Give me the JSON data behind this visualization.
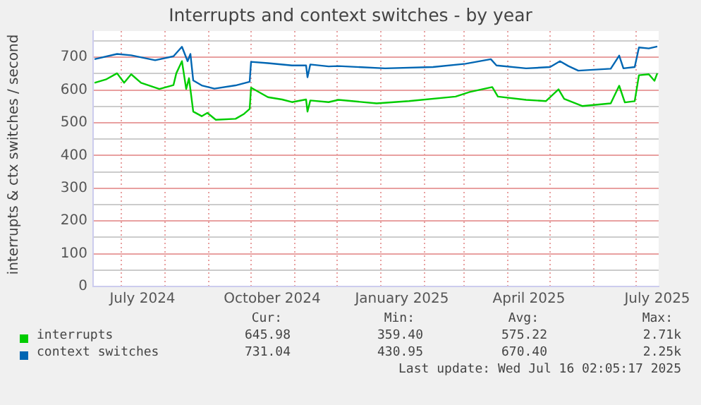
{
  "chart_data": {
    "type": "line",
    "title": "Interrupts and context switches - by year",
    "ylabel": "interrupts & ctx switches / second",
    "xlim": [
      "2024-06-11",
      "2025-07-17"
    ],
    "xticks": [
      {
        "value": "2024-07-01",
        "label": null
      },
      {
        "value": "2024-07-16",
        "label": "July 2024"
      },
      {
        "value": "2024-08-01",
        "label": null
      },
      {
        "value": "2024-09-01",
        "label": null
      },
      {
        "value": "2024-10-01",
        "label": null
      },
      {
        "value": "2024-10-16",
        "label": "October 2024"
      },
      {
        "value": "2024-11-01",
        "label": null
      },
      {
        "value": "2024-12-01",
        "label": null
      },
      {
        "value": "2025-01-01",
        "label": null
      },
      {
        "value": "2025-01-16",
        "label": "January 2025"
      },
      {
        "value": "2025-02-01",
        "label": null
      },
      {
        "value": "2025-03-01",
        "label": null
      },
      {
        "value": "2025-04-01",
        "label": null
      },
      {
        "value": "2025-04-16",
        "label": "April 2025"
      },
      {
        "value": "2025-05-01",
        "label": null
      },
      {
        "value": "2025-06-01",
        "label": null
      },
      {
        "value": "2025-07-01",
        "label": null
      },
      {
        "value": "2025-07-16",
        "label": "July 2025"
      }
    ],
    "ylim": [
      0,
      780
    ],
    "yticks": [
      0,
      {
        "value": 50,
        "label": null
      },
      100,
      {
        "value": 150,
        "label": null
      },
      200,
      {
        "value": 250,
        "label": null
      },
      300,
      {
        "value": 350,
        "label": null
      },
      400,
      {
        "value": 450,
        "label": null
      },
      500,
      {
        "value": 550,
        "label": null
      },
      600,
      {
        "value": 650,
        "label": null
      },
      700,
      {
        "value": 750,
        "label": null
      }
    ],
    "grid": true,
    "legend": "bottom",
    "marker": "none",
    "line_style": "solid",
    "series": [
      {
        "name": "interrupts",
        "color": "#00cc00",
        "x": [
          "2024-06-12",
          "2024-06-20",
          "2024-06-28",
          "2024-07-03",
          "2024-07-08",
          "2024-07-15",
          "2024-07-28",
          "2024-08-07",
          "2024-08-09",
          "2024-08-13",
          "2024-08-16",
          "2024-08-18",
          "2024-08-21",
          "2024-08-27",
          "2024-08-31",
          "2024-09-06",
          "2024-09-20",
          "2024-09-26",
          "2024-09-30",
          "2024-10-01",
          "2024-10-13",
          "2024-10-23",
          "2024-10-30",
          "2024-11-09",
          "2024-11-10",
          "2024-11-12",
          "2024-11-25",
          "2024-12-02",
          "2024-12-29",
          "2025-01-21",
          "2025-02-23",
          "2025-03-05",
          "2025-03-21",
          "2025-03-25",
          "2025-04-14",
          "2025-04-28",
          "2025-05-07",
          "2025-05-11",
          "2025-05-24",
          "2025-06-13",
          "2025-06-19",
          "2025-06-23",
          "2025-06-30",
          "2025-07-03",
          "2025-07-10",
          "2025-07-14",
          "2025-07-16"
        ],
        "values": [
          622,
          632,
          651,
          622,
          648,
          622,
          603,
          615,
          651,
          688,
          603,
          636,
          534,
          520,
          530,
          509,
          512,
          527,
          542,
          607,
          578,
          571,
          563,
          571,
          534,
          568,
          563,
          570,
          559,
          566,
          580,
          594,
          609,
          580,
          570,
          566,
          602,
          573,
          551,
          559,
          613,
          562,
          566,
          645,
          648,
          628,
          651
        ]
      },
      {
        "name": "context switches",
        "color": "#0066b3",
        "x": [
          "2024-06-12",
          "2024-06-28",
          "2024-07-08",
          "2024-07-25",
          "2024-08-07",
          "2024-08-13",
          "2024-08-17",
          "2024-08-19",
          "2024-08-21",
          "2024-08-27",
          "2024-09-05",
          "2024-09-20",
          "2024-09-30",
          "2024-10-01",
          "2024-10-13",
          "2024-10-30",
          "2024-11-09",
          "2024-11-10",
          "2024-11-12",
          "2024-11-25",
          "2024-12-02",
          "2025-01-04",
          "2025-02-07",
          "2025-03-02",
          "2025-03-20",
          "2025-03-24",
          "2025-04-14",
          "2025-05-01",
          "2025-05-08",
          "2025-05-14",
          "2025-05-21",
          "2025-06-13",
          "2025-06-19",
          "2025-06-22",
          "2025-06-30",
          "2025-07-03",
          "2025-07-10",
          "2025-07-16"
        ],
        "values": [
          694,
          710,
          706,
          691,
          703,
          732,
          688,
          710,
          629,
          614,
          604,
          614,
          625,
          686,
          682,
          675,
          675,
          639,
          678,
          672,
          673,
          666,
          670,
          680,
          694,
          675,
          666,
          670,
          688,
          673,
          659,
          665,
          705,
          666,
          670,
          730,
          727,
          733
        ]
      }
    ],
    "annotations": [
      "Cur:",
      "Min:",
      "Avg:",
      "Max:",
      "645.98",
      "359.40",
      "575.22",
      "2.71k",
      "731.04",
      "430.95",
      "670.40",
      "2.25k",
      "Last update: Wed Jul 16 02:05:17 2025"
    ]
  }
}
